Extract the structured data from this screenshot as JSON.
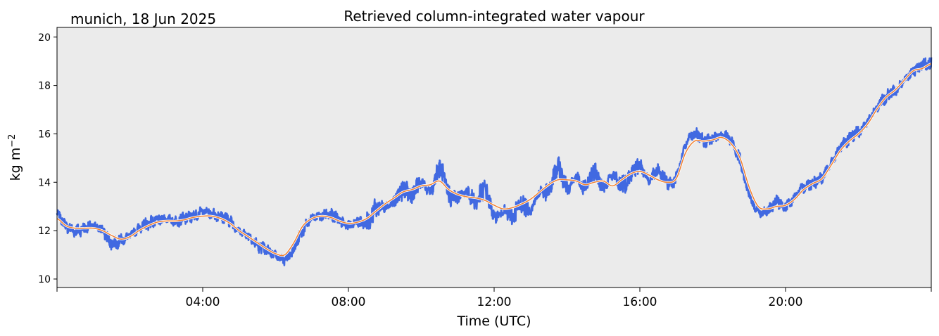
{
  "chart_data": {
    "type": "line",
    "title": "Retrieved column-integrated water vapour",
    "subtitle": "munich, 18 Jun 2025",
    "xlabel": "Time (UTC)",
    "ylabel_main": "kg m",
    "ylabel_sup": "−2",
    "xlim_hours": [
      0,
      24
    ],
    "ylim": [
      9.65,
      20.4
    ],
    "x_ticks": [
      {
        "hour": 4,
        "label": "04:00"
      },
      {
        "hour": 8,
        "label": "08:00"
      },
      {
        "hour": 12,
        "label": "12:00"
      },
      {
        "hour": 16,
        "label": "16:00"
      },
      {
        "hour": 20,
        "label": "20:00"
      }
    ],
    "y_ticks": [
      {
        "value": 10,
        "label": "10"
      },
      {
        "value": 12,
        "label": "12"
      },
      {
        "value": 14,
        "label": "14"
      },
      {
        "value": 16,
        "label": "16"
      },
      {
        "value": 18,
        "label": "18"
      },
      {
        "value": 20,
        "label": "20"
      }
    ],
    "grid": false,
    "colors": {
      "background": "#ebebeb",
      "raw": "#4169e1",
      "smoothed": "#f08030",
      "smoothed_outline": "#ffffff"
    },
    "series": [
      {
        "style": "raw",
        "x_hours": [
          0,
          0.25,
          0.5,
          0.75,
          1.0,
          1.25,
          1.5,
          1.75,
          2.0,
          2.25,
          2.5,
          2.75,
          3.0,
          3.25,
          3.5,
          3.75,
          4.0,
          4.25,
          4.5,
          4.75,
          5.0,
          5.25,
          5.5,
          5.75,
          6.0,
          6.25,
          6.5,
          6.75,
          7.0,
          7.25,
          7.5,
          7.75,
          8.0,
          8.25,
          8.5,
          8.75,
          9.0,
          9.25,
          9.5,
          9.75,
          10.0,
          10.25,
          10.5,
          10.75,
          11.0,
          11.25,
          11.5,
          11.75,
          12.0,
          12.25,
          12.5,
          12.75,
          13.0,
          13.25,
          13.5,
          13.75,
          14.0,
          14.25,
          14.5,
          14.75,
          15.0,
          15.25,
          15.5,
          15.75,
          16.0,
          16.25,
          16.5,
          16.75,
          17.0,
          17.25,
          17.5,
          17.75,
          18.0,
          18.25,
          18.5,
          18.75,
          19.0,
          19.25,
          19.5,
          19.75,
          20.0,
          20.25,
          20.5,
          20.75,
          21.0,
          21.25,
          21.5,
          21.75,
          22.0,
          22.25,
          22.5,
          22.75,
          23.0,
          23.25,
          23.5,
          23.75,
          24.0
        ],
        "values": [
          12.7,
          12.2,
          12.0,
          12.1,
          12.2,
          12.0,
          11.5,
          11.6,
          11.8,
          12.1,
          12.3,
          12.4,
          12.5,
          12.4,
          12.5,
          12.6,
          12.8,
          12.7,
          12.6,
          12.4,
          12.0,
          11.8,
          11.4,
          11.2,
          11.0,
          10.8,
          11.3,
          12.0,
          12.5,
          12.6,
          12.7,
          12.4,
          12.2,
          12.4,
          12.3,
          12.9,
          13.0,
          13.2,
          13.7,
          13.5,
          14.0,
          13.6,
          14.6,
          13.5,
          13.4,
          13.6,
          13.2,
          13.7,
          12.6,
          12.8,
          12.6,
          13.1,
          12.9,
          13.6,
          13.6,
          14.6,
          13.8,
          14.2,
          13.7,
          14.5,
          13.8,
          14.3,
          13.9,
          14.3,
          14.7,
          14.1,
          14.5,
          14.0,
          14.2,
          15.5,
          16.0,
          15.7,
          15.8,
          16.0,
          15.7,
          14.9,
          13.5,
          12.8,
          12.8,
          13.2,
          13.0,
          13.4,
          13.8,
          14.0,
          14.2,
          14.8,
          15.4,
          15.8,
          16.1,
          16.5,
          17.1,
          17.5,
          17.8,
          18.2,
          18.6,
          18.8,
          18.9
        ]
      },
      {
        "style": "smoothed",
        "x_hours": [
          0,
          0.25,
          0.5,
          0.75,
          1.0,
          1.25,
          1.5,
          1.75,
          2.0,
          2.25,
          2.5,
          2.75,
          3.0,
          3.25,
          3.5,
          3.75,
          4.0,
          4.25,
          4.5,
          4.75,
          5.0,
          5.25,
          5.5,
          5.75,
          6.0,
          6.25,
          6.5,
          6.75,
          7.0,
          7.25,
          7.5,
          7.75,
          8.0,
          8.25,
          8.5,
          8.75,
          9.0,
          9.25,
          9.5,
          9.75,
          10.0,
          10.25,
          10.5,
          10.75,
          11.0,
          11.25,
          11.5,
          11.75,
          12.0,
          12.25,
          12.5,
          12.75,
          13.0,
          13.25,
          13.5,
          13.75,
          14.0,
          14.25,
          14.5,
          14.75,
          15.0,
          15.25,
          15.5,
          15.75,
          16.0,
          16.25,
          16.5,
          16.75,
          17.0,
          17.25,
          17.5,
          17.75,
          18.0,
          18.25,
          18.5,
          18.75,
          19.0,
          19.25,
          19.5,
          19.75,
          20.0,
          20.25,
          20.5,
          20.75,
          21.0,
          21.25,
          21.5,
          21.75,
          22.0,
          22.25,
          22.5,
          22.75,
          23.0,
          23.25,
          23.5,
          23.75,
          24.0
        ],
        "values": [
          12.5,
          12.2,
          12.1,
          12.1,
          12.1,
          12.0,
          11.8,
          11.65,
          11.75,
          12.0,
          12.2,
          12.35,
          12.4,
          12.4,
          12.45,
          12.55,
          12.6,
          12.6,
          12.5,
          12.3,
          12.0,
          11.75,
          11.5,
          11.25,
          11.05,
          11.0,
          11.5,
          12.2,
          12.5,
          12.6,
          12.55,
          12.4,
          12.3,
          12.35,
          12.5,
          12.8,
          13.1,
          13.35,
          13.6,
          13.7,
          13.85,
          13.9,
          14.05,
          13.7,
          13.5,
          13.4,
          13.35,
          13.25,
          13.05,
          12.9,
          12.95,
          13.1,
          13.3,
          13.6,
          13.9,
          14.1,
          14.1,
          14.05,
          13.9,
          14.0,
          14.05,
          13.85,
          14.1,
          14.35,
          14.45,
          14.3,
          14.1,
          14.0,
          14.15,
          15.2,
          15.7,
          15.7,
          15.75,
          15.85,
          15.6,
          15.0,
          13.8,
          13.0,
          12.9,
          13.0,
          13.05,
          13.3,
          13.7,
          13.95,
          14.15,
          14.7,
          15.3,
          15.7,
          16.0,
          16.4,
          17.0,
          17.5,
          17.8,
          18.2,
          18.6,
          18.7,
          18.9
        ]
      }
    ]
  }
}
